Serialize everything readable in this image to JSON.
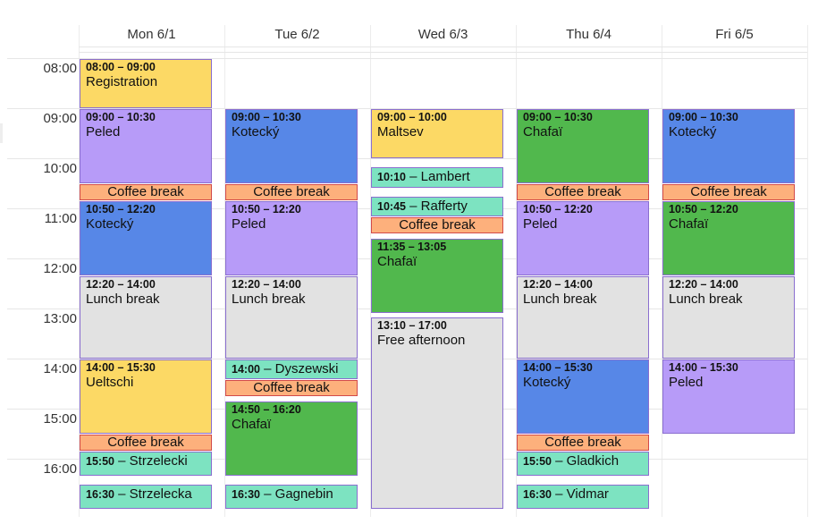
{
  "days": [
    "Mon 6/1",
    "Tue 6/2",
    "Wed 6/3",
    "Thu 6/4",
    "Fri 6/5"
  ],
  "hours": [
    "08:00",
    "09:00",
    "10:00",
    "11:00",
    "12:00",
    "13:00",
    "14:00",
    "15:00",
    "16:00"
  ],
  "colors": {
    "yellow": "#fcd965",
    "purple": "#b79bf8",
    "blue": "#5787e7",
    "green": "#51b84d",
    "teal": "#7de3c1",
    "orange": "#fdb07c",
    "gray": "#e2e2e2"
  },
  "events": [
    {
      "day": 0,
      "start": "08:00",
      "end": "09:00",
      "time": "08:00 – 09:00",
      "title": "Registration",
      "color": "yellow"
    },
    {
      "day": 0,
      "start": "09:00",
      "end": "10:30",
      "time": "09:00 – 10:30",
      "title": "Peled",
      "color": "purple"
    },
    {
      "day": 0,
      "start": "10:30",
      "end": "10:50",
      "time": "",
      "title": "Coffee break",
      "color": "orange"
    },
    {
      "day": 0,
      "start": "10:50",
      "end": "12:20",
      "time": "10:50 – 12:20",
      "title": "Kotecký",
      "color": "blue"
    },
    {
      "day": 0,
      "start": "12:20",
      "end": "14:00",
      "time": "12:20 – 14:00",
      "title": "Lunch break",
      "color": "gray"
    },
    {
      "day": 0,
      "start": "14:00",
      "end": "15:30",
      "time": "14:00 – 15:30",
      "title": "Ueltschi",
      "color": "yellow"
    },
    {
      "day": 0,
      "start": "15:30",
      "end": "15:50",
      "time": "",
      "title": "Coffee break",
      "color": "orange"
    },
    {
      "day": 0,
      "start": "15:50",
      "end": "16:20",
      "time": "15:50",
      "title": "Strzelecki",
      "color": "teal"
    },
    {
      "day": 0,
      "start": "16:30",
      "end": "17:00",
      "time": "16:30",
      "title": "Strzelecka",
      "color": "teal"
    },
    {
      "day": 1,
      "start": "09:00",
      "end": "10:30",
      "time": "09:00 – 10:30",
      "title": "Kotecký",
      "color": "blue"
    },
    {
      "day": 1,
      "start": "10:30",
      "end": "10:50",
      "time": "",
      "title": "Coffee break",
      "color": "orange"
    },
    {
      "day": 1,
      "start": "10:50",
      "end": "12:20",
      "time": "10:50 – 12:20",
      "title": "Peled",
      "color": "purple"
    },
    {
      "day": 1,
      "start": "12:20",
      "end": "14:00",
      "time": "12:20 – 14:00",
      "title": "Lunch break",
      "color": "gray"
    },
    {
      "day": 1,
      "start": "14:00",
      "end": "14:25",
      "time": "14:00",
      "title": "Dyszewski",
      "color": "teal"
    },
    {
      "day": 1,
      "start": "14:25",
      "end": "14:45",
      "time": "",
      "title": "Coffee break",
      "color": "orange"
    },
    {
      "day": 1,
      "start": "14:50",
      "end": "16:20",
      "time": "14:50 – 16:20",
      "title": "Chafaï",
      "color": "green"
    },
    {
      "day": 1,
      "start": "16:30",
      "end": "17:00",
      "time": "16:30",
      "title": "Gagnebin",
      "color": "teal"
    },
    {
      "day": 2,
      "start": "09:00",
      "end": "10:00",
      "time": "09:00 – 10:00",
      "title": "Maltsev",
      "color": "yellow"
    },
    {
      "day": 2,
      "start": "10:10",
      "end": "10:35",
      "time": "10:10",
      "title": "Lambert",
      "color": "teal"
    },
    {
      "day": 2,
      "start": "10:45",
      "end": "11:10",
      "time": "10:45",
      "title": "Rafferty",
      "color": "teal"
    },
    {
      "day": 2,
      "start": "11:10",
      "end": "11:30",
      "time": "",
      "title": "Coffee break",
      "color": "orange"
    },
    {
      "day": 2,
      "start": "11:35",
      "end": "13:05",
      "time": "11:35 – 13:05",
      "title": "Chafaï",
      "color": "green"
    },
    {
      "day": 2,
      "start": "13:10",
      "end": "17:00",
      "time": "13:10 – 17:00",
      "title": "Free afternoon",
      "color": "gray"
    },
    {
      "day": 3,
      "start": "09:00",
      "end": "10:30",
      "time": "09:00 – 10:30",
      "title": "Chafaï",
      "color": "green"
    },
    {
      "day": 3,
      "start": "10:30",
      "end": "10:50",
      "time": "",
      "title": "Coffee break",
      "color": "orange"
    },
    {
      "day": 3,
      "start": "10:50",
      "end": "12:20",
      "time": "10:50 – 12:20",
      "title": "Peled",
      "color": "purple"
    },
    {
      "day": 3,
      "start": "12:20",
      "end": "14:00",
      "time": "12:20 – 14:00",
      "title": "Lunch break",
      "color": "gray"
    },
    {
      "day": 3,
      "start": "14:00",
      "end": "15:30",
      "time": "14:00 – 15:30",
      "title": "Kotecký",
      "color": "blue"
    },
    {
      "day": 3,
      "start": "15:30",
      "end": "15:50",
      "time": "",
      "title": "Coffee break",
      "color": "orange"
    },
    {
      "day": 3,
      "start": "15:50",
      "end": "16:20",
      "time": "15:50",
      "title": "Gladkich",
      "color": "teal"
    },
    {
      "day": 3,
      "start": "16:30",
      "end": "17:00",
      "time": "16:30",
      "title": "Vidmar",
      "color": "teal"
    },
    {
      "day": 4,
      "start": "09:00",
      "end": "10:30",
      "time": "09:00 – 10:30",
      "title": "Kotecký",
      "color": "blue"
    },
    {
      "day": 4,
      "start": "10:30",
      "end": "10:50",
      "time": "",
      "title": "Coffee break",
      "color": "orange"
    },
    {
      "day": 4,
      "start": "10:50",
      "end": "12:20",
      "time": "10:50 – 12:20",
      "title": "Chafaï",
      "color": "green"
    },
    {
      "day": 4,
      "start": "12:20",
      "end": "14:00",
      "time": "12:20 – 14:00",
      "title": "Lunch break",
      "color": "gray"
    },
    {
      "day": 4,
      "start": "14:00",
      "end": "15:30",
      "time": "14:00 – 15:30",
      "title": "Peled",
      "color": "purple"
    }
  ]
}
